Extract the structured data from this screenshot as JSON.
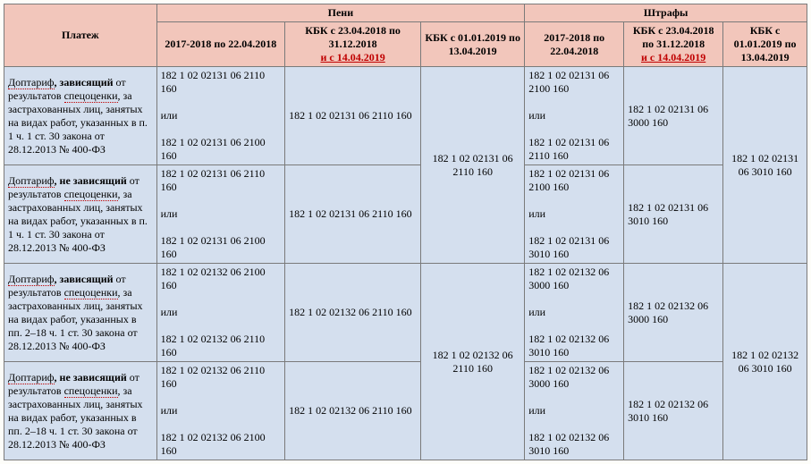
{
  "headers": {
    "payment": "Платеж",
    "peni": "Пени",
    "shtrafy": "Штрафы",
    "col1": "2017-2018 по 22.04.2018",
    "col2a": "КБК с 23.04.2018 по 31.12.2018",
    "col2b": "и с 14.04.2019",
    "col3a": "КБК с 01.01.2019 по 13.04.2019",
    "col4": "2017-2018 по 22.04.2018",
    "col5a": "КБК с 23.04.2018 по 31.12.2018",
    "col5b": "и с 14.04.2019",
    "col6a": "КБК с 01.01.2019 по 13.04.2019"
  },
  "rows": [
    {
      "desc_pref": "Доптариф",
      "desc_bold": ", зависящий",
      "desc_rest1": " от результатов ",
      "desc_spec": "спецоценки",
      "desc_rest2": ", за застрахованных лиц, занятых на видах работ, указанных в п. 1 ч. 1 ст. 30 закона от 28.12.2013 № 400-ФЗ",
      "c1": "182 1 02 02131 06 2110 160\n\nили\n\n182 1 02 02131 06 2100 160",
      "c2": "182 1 02 02131 06 2110 160",
      "c4": "182 1 02 02131 06 2100 160\n\nили\n\n182 1 02 02131 06 2110 160",
      "c5": "182 1 02 02131 06 3000 160"
    },
    {
      "desc_pref": "Доптариф",
      "desc_bold": ", не зависящий",
      "desc_rest1": " от результатов ",
      "desc_spec": "спецоценки",
      "desc_rest2": ", за застрахованных лиц, занятых на видах работ, указанных в п. 1 ч. 1 ст. 30 закона от 28.12.2013 № 400-ФЗ",
      "c1": "182 1 02 02131 06 2110 160\n\nили\n\n182 1 02 02131 06 2100 160",
      "c2": "182 1 02 02131 06 2110 160",
      "c4": "182 1 02 02131 06 2100 160\n\nили\n\n182 1 02 02131 06 3010 160",
      "c5": "182 1 02 02131 06 3010 160"
    },
    {
      "desc_pref": "Доптариф",
      "desc_bold": ", зависящий",
      "desc_rest1": " от результатов ",
      "desc_spec": "спецоценки",
      "desc_rest2": ", за застрахованных лиц, занятых на видах работ, указанных в пп. 2–18 ч. 1 ст. 30 закона от 28.12.2013 № 400-ФЗ",
      "c1": "182 1 02 02132 06 2100 160\n\nили\n\n182 1 02 02132 06 2110 160",
      "c2": "182 1 02 02132 06 2110 160",
      "c4": "182 1 02 02132 06 3000 160\n\nили\n\n182 1 02 02132 06 3010 160",
      "c5": "182 1 02 02132 06 3000 160"
    },
    {
      "desc_pref": "Доптариф",
      "desc_bold": ", не зависящий",
      "desc_rest1": " от результатов ",
      "desc_spec": "спецоценки",
      "desc_rest2": ", за застрахованных лиц, занятых на видах работ, указанных в пп. 2–18 ч. 1 ст. 30 закона от 28.12.2013 № 400-ФЗ",
      "c1": "182 1 02 02132 06 2110 160\n\nили\n\n182 1 02 02132 06 2100 160",
      "c2": "182 1 02 02132 06 2110 160",
      "c4": "182 1 02 02132 06 3000 160\n\nили\n\n182 1 02 02132 06 3010 160",
      "c5": "182 1 02 02132 06 3010 160"
    }
  ],
  "merged": {
    "c3_top": "182 1 02 02131 06 2110 160",
    "c6_top": "182 1 02 02131 06 3010 160",
    "c3_bot": "182 1 02 02132 06 2110 160",
    "c6_bot": "182 1 02 02132 06 3010 160"
  }
}
